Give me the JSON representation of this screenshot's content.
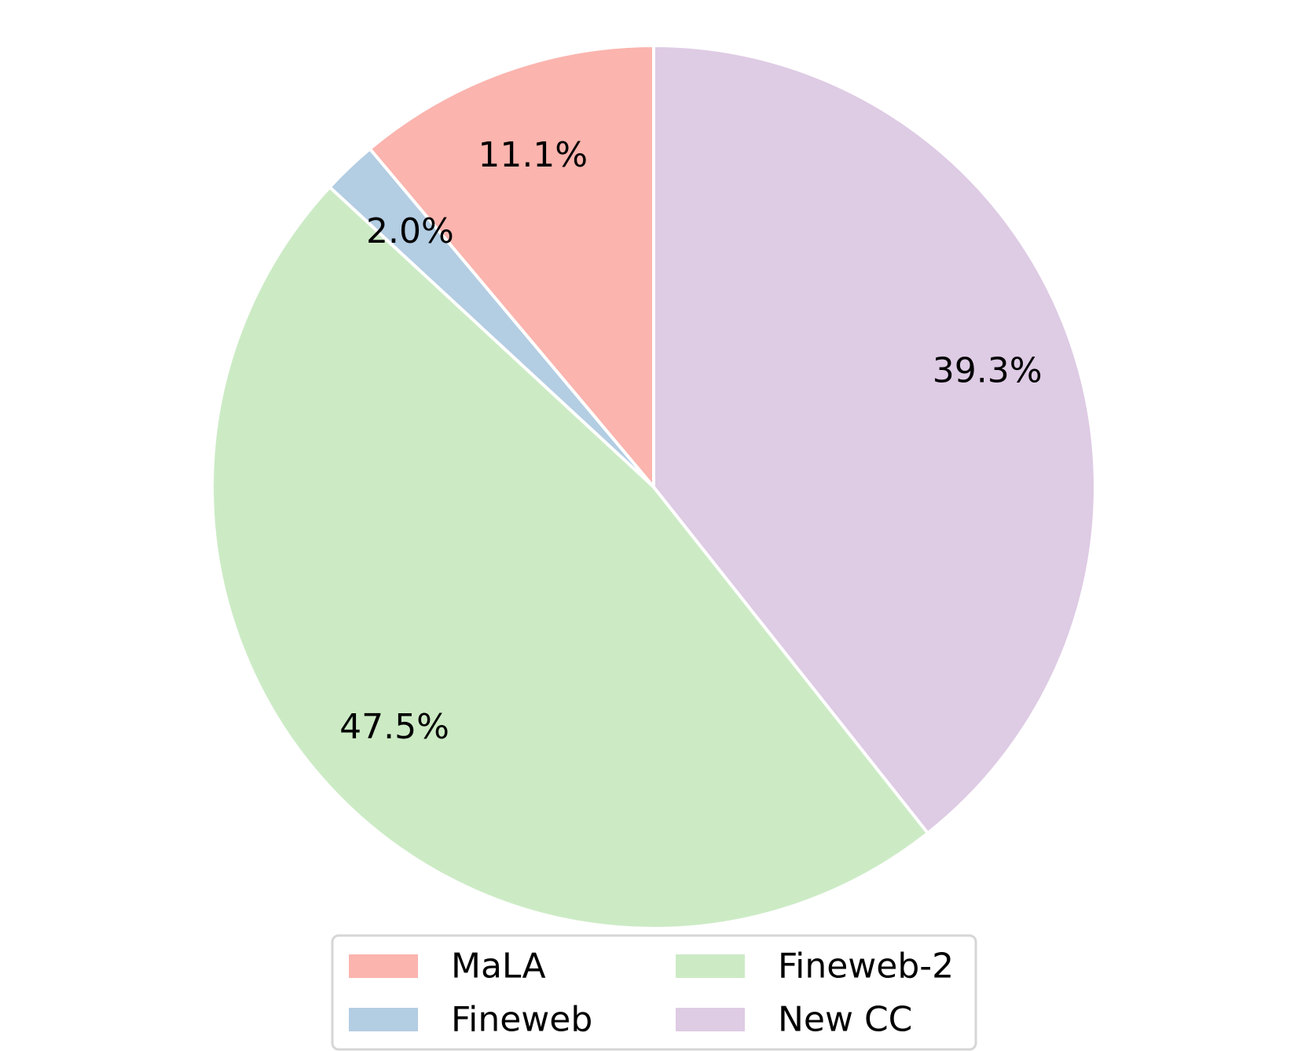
{
  "chart_data": {
    "type": "pie",
    "title": "",
    "start_angle_deg": 90,
    "direction": "counterclockwise",
    "slices": [
      {
        "label": "MaLA",
        "value": 11.1,
        "pct_label": "11.1%",
        "color": "#FBB4AE"
      },
      {
        "label": "Fineweb",
        "value": 2.0,
        "pct_label": "2.0%",
        "color": "#B3CDE3"
      },
      {
        "label": "Fineweb-2",
        "value": 47.5,
        "pct_label": "47.5%",
        "color": "#CCEBC5"
      },
      {
        "label": "New CC",
        "value": 39.3,
        "pct_label": "39.3%",
        "color": "#DECBE4"
      }
    ],
    "edge_color": "#FFFFFF",
    "legend": {
      "placement": "bottom-center",
      "columns": 2
    }
  }
}
